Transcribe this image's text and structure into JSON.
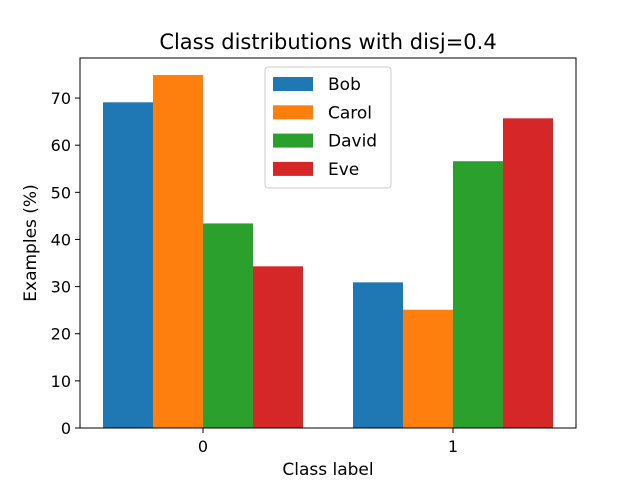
{
  "chart_data": {
    "type": "bar",
    "title": "Class distributions with disj=0.4",
    "xlabel": "Class label",
    "ylabel": "Examples (%)",
    "categories": [
      "0",
      "1"
    ],
    "yticks": [
      0,
      10,
      20,
      30,
      40,
      50,
      60,
      70
    ],
    "ylim": [
      0,
      78.5
    ],
    "grid": false,
    "legend_position": "top-center",
    "series": [
      {
        "name": "Bob",
        "color": "#1f77b4",
        "values": [
          69.1,
          30.9
        ]
      },
      {
        "name": "Carol",
        "color": "#ff7f0e",
        "values": [
          74.9,
          25.1
        ]
      },
      {
        "name": "David",
        "color": "#2ca02c",
        "values": [
          43.4,
          56.6
        ]
      },
      {
        "name": "Eve",
        "color": "#d62728",
        "values": [
          34.3,
          65.7
        ]
      }
    ]
  }
}
